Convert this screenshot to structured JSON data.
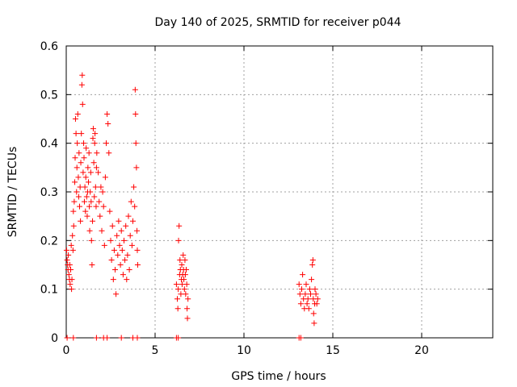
{
  "chart_data": {
    "type": "scatter",
    "title": "Day 140 of 2025, SRMTID for receiver p044",
    "xlabel": "GPS time / hours",
    "ylabel": "SRMTID / TECUs",
    "xlim": [
      0,
      24
    ],
    "ylim": [
      0,
      0.6
    ],
    "x_ticks": [
      0,
      5,
      10,
      15,
      20
    ],
    "y_ticks": [
      0,
      0.1,
      0.2,
      0.3,
      0.4,
      0.5,
      0.6
    ],
    "x_tick_labels": [
      "0",
      "5",
      "10",
      "15",
      "20"
    ],
    "y_tick_labels": [
      "0",
      "0.1",
      "0.2",
      "0.3",
      "0.4",
      "0.5",
      "0.6"
    ],
    "grid": true,
    "marker": "+",
    "marker_color": "#ff0000",
    "series": [
      {
        "name": "SRMTID",
        "points": [
          [
            0.02,
            0.18
          ],
          [
            0.05,
            0.16
          ],
          [
            0.08,
            0.15
          ],
          [
            0.1,
            0.14
          ],
          [
            0.12,
            0.17
          ],
          [
            0.15,
            0.13
          ],
          [
            0.18,
            0.12
          ],
          [
            0.2,
            0.15
          ],
          [
            0.22,
            0.11
          ],
          [
            0.25,
            0.14
          ],
          [
            0.28,
            0.19
          ],
          [
            0.3,
            0.1
          ],
          [
            0.32,
            0.12
          ],
          [
            0.35,
            0.21
          ],
          [
            0.38,
            0.18
          ],
          [
            0.4,
            0.26
          ],
          [
            0.42,
            0.23
          ],
          [
            0.45,
            0.28
          ],
          [
            0.48,
            0.32
          ],
          [
            0.5,
            0.37
          ],
          [
            0.52,
            0.45
          ],
          [
            0.55,
            0.42
          ],
          [
            0.58,
            0.3
          ],
          [
            0.6,
            0.35
          ],
          [
            0.62,
            0.4
          ],
          [
            0.65,
            0.46
          ],
          [
            0.68,
            0.33
          ],
          [
            0.7,
            0.29
          ],
          [
            0.72,
            0.38
          ],
          [
            0.75,
            0.27
          ],
          [
            0.78,
            0.31
          ],
          [
            0.8,
            0.24
          ],
          [
            0.82,
            0.36
          ],
          [
            0.85,
            0.42
          ],
          [
            0.88,
            0.52
          ],
          [
            0.9,
            0.54
          ],
          [
            0.92,
            0.48
          ],
          [
            0.95,
            0.34
          ],
          [
            0.98,
            0.4
          ],
          [
            1.0,
            0.37
          ],
          [
            1.02,
            0.28
          ],
          [
            1.05,
            0.31
          ],
          [
            1.08,
            0.26
          ],
          [
            1.1,
            0.33
          ],
          [
            1.12,
            0.39
          ],
          [
            1.15,
            0.29
          ],
          [
            1.18,
            0.25
          ],
          [
            1.2,
            0.3
          ],
          [
            1.22,
            0.35
          ],
          [
            1.25,
            0.32
          ],
          [
            1.28,
            0.38
          ],
          [
            1.3,
            0.27
          ],
          [
            1.32,
            0.22
          ],
          [
            1.35,
            0.3
          ],
          [
            1.38,
            0.34
          ],
          [
            1.4,
            0.28
          ],
          [
            1.42,
            0.2
          ],
          [
            1.45,
            0.15
          ],
          [
            1.48,
            0.24
          ],
          [
            1.5,
            0.41
          ],
          [
            1.52,
            0.43
          ],
          [
            1.55,
            0.36
          ],
          [
            1.58,
            0.29
          ],
          [
            1.6,
            0.4
          ],
          [
            1.62,
            0.42
          ],
          [
            1.65,
            0.31
          ],
          [
            1.68,
            0.27
          ],
          [
            1.7,
            0.35
          ],
          [
            1.72,
            0.38
          ],
          [
            1.8,
            0.34
          ],
          [
            1.85,
            0.28
          ],
          [
            1.9,
            0.25
          ],
          [
            1.95,
            0.31
          ],
          [
            2.0,
            0.22
          ],
          [
            2.05,
            0.3
          ],
          [
            2.1,
            0.27
          ],
          [
            2.15,
            0.19
          ],
          [
            2.2,
            0.33
          ],
          [
            2.25,
            0.4
          ],
          [
            2.3,
            0.46
          ],
          [
            2.35,
            0.44
          ],
          [
            2.4,
            0.38
          ],
          [
            2.45,
            0.26
          ],
          [
            2.5,
            0.2
          ],
          [
            2.55,
            0.16
          ],
          [
            2.6,
            0.23
          ],
          [
            2.65,
            0.12
          ],
          [
            2.7,
            0.18
          ],
          [
            2.75,
            0.14
          ],
          [
            2.8,
            0.09
          ],
          [
            2.85,
            0.21
          ],
          [
            2.9,
            0.17
          ],
          [
            2.95,
            0.24
          ],
          [
            3.0,
            0.19
          ],
          [
            3.05,
            0.15
          ],
          [
            3.1,
            0.22
          ],
          [
            3.15,
            0.18
          ],
          [
            3.2,
            0.13
          ],
          [
            3.25,
            0.2
          ],
          [
            3.3,
            0.16
          ],
          [
            3.35,
            0.23
          ],
          [
            3.4,
            0.12
          ],
          [
            3.45,
            0.17
          ],
          [
            3.5,
            0.25
          ],
          [
            3.55,
            0.14
          ],
          [
            3.6,
            0.21
          ],
          [
            3.65,
            0.28
          ],
          [
            3.7,
            0.19
          ],
          [
            3.75,
            0.24
          ],
          [
            3.8,
            0.31
          ],
          [
            3.85,
            0.27
          ],
          [
            3.88,
            0.51
          ],
          [
            3.9,
            0.46
          ],
          [
            3.92,
            0.4
          ],
          [
            3.95,
            0.35
          ],
          [
            3.98,
            0.22
          ],
          [
            4.0,
            0.18
          ],
          [
            4.02,
            0.15
          ],
          [
            6.2,
            0.11
          ],
          [
            6.25,
            0.08
          ],
          [
            6.28,
            0.06
          ],
          [
            6.3,
            0.1
          ],
          [
            6.32,
            0.2
          ],
          [
            6.35,
            0.23
          ],
          [
            6.38,
            0.13
          ],
          [
            6.4,
            0.16
          ],
          [
            6.42,
            0.14
          ],
          [
            6.45,
            0.09
          ],
          [
            6.48,
            0.12
          ],
          [
            6.5,
            0.15
          ],
          [
            6.52,
            0.11
          ],
          [
            6.55,
            0.13
          ],
          [
            6.58,
            0.17
          ],
          [
            6.6,
            0.14
          ],
          [
            6.62,
            0.12
          ],
          [
            6.65,
            0.1
          ],
          [
            6.68,
            0.16
          ],
          [
            6.7,
            0.13
          ],
          [
            6.72,
            0.09
          ],
          [
            6.75,
            0.14
          ],
          [
            6.78,
            0.11
          ],
          [
            6.8,
            0.06
          ],
          [
            6.82,
            0.04
          ],
          [
            6.85,
            0.08
          ],
          [
            13.1,
            0.11
          ],
          [
            13.15,
            0.09
          ],
          [
            13.2,
            0.07
          ],
          [
            13.25,
            0.1
          ],
          [
            13.3,
            0.13
          ],
          [
            13.35,
            0.08
          ],
          [
            13.4,
            0.06
          ],
          [
            13.45,
            0.09
          ],
          [
            13.5,
            0.11
          ],
          [
            13.55,
            0.07
          ],
          [
            13.6,
            0.08
          ],
          [
            13.65,
            0.06
          ],
          [
            13.7,
            0.1
          ],
          [
            13.75,
            0.09
          ],
          [
            13.8,
            0.12
          ],
          [
            13.85,
            0.15
          ],
          [
            13.88,
            0.16
          ],
          [
            13.9,
            0.08
          ],
          [
            13.92,
            0.05
          ],
          [
            13.95,
            0.03
          ],
          [
            13.98,
            0.07
          ],
          [
            14.0,
            0.1
          ],
          [
            14.05,
            0.09
          ],
          [
            14.1,
            0.07
          ],
          [
            14.15,
            0.08
          ],
          [
            0.05,
            0.0
          ],
          [
            0.4,
            0.0
          ],
          [
            1.7,
            0.0
          ],
          [
            2.1,
            0.0
          ],
          [
            2.3,
            0.0
          ],
          [
            3.1,
            0.0
          ],
          [
            3.75,
            0.0
          ],
          [
            4.0,
            0.0
          ],
          [
            6.2,
            0.0
          ],
          [
            6.3,
            0.0
          ],
          [
            13.1,
            0.0
          ],
          [
            13.2,
            0.0
          ]
        ]
      }
    ]
  }
}
